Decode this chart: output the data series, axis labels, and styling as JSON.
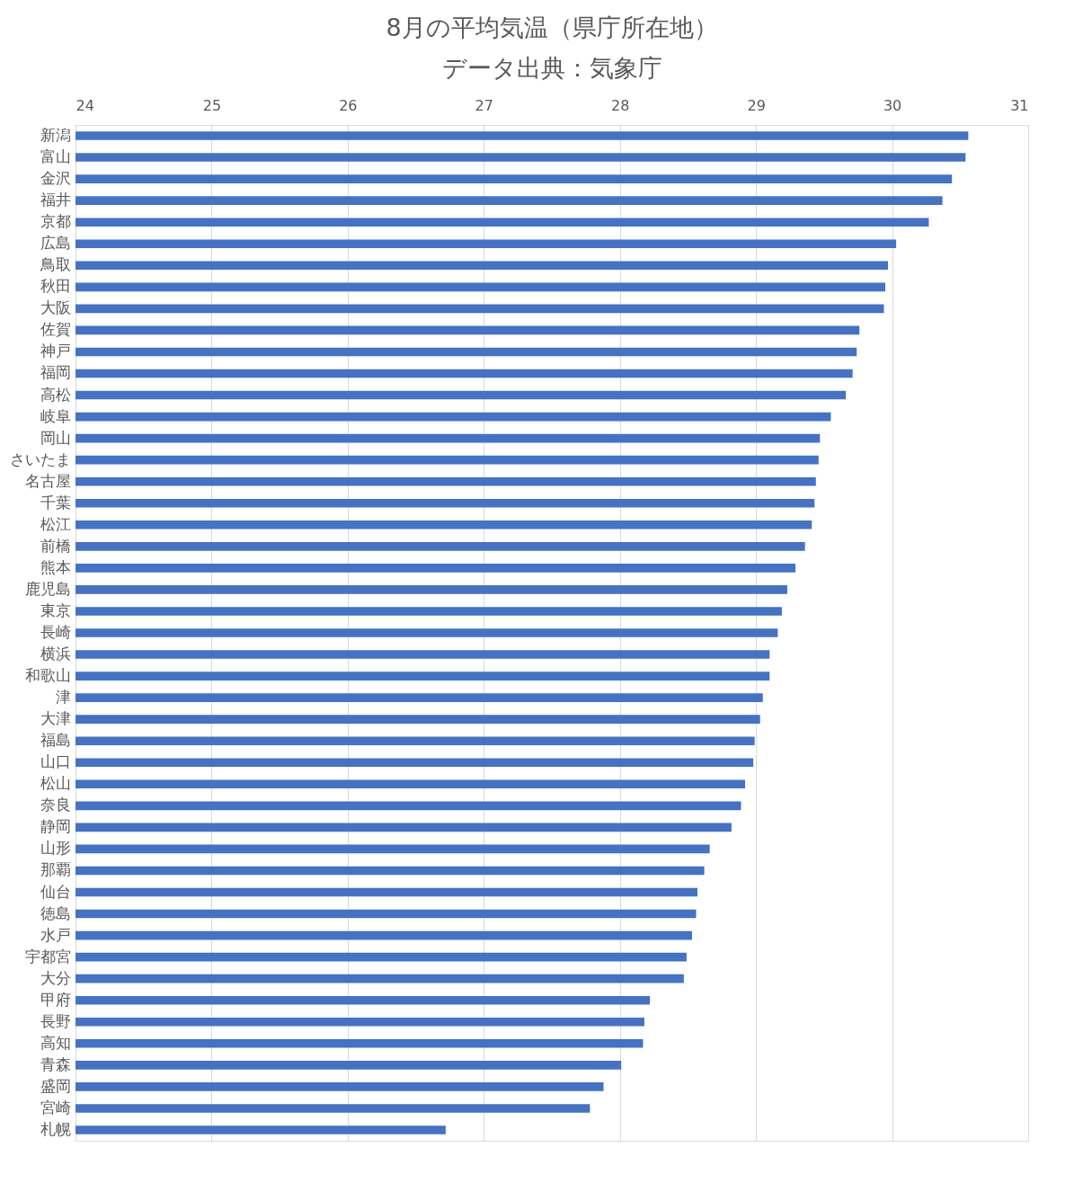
{
  "chart_data": {
    "type": "bar",
    "orientation": "horizontal",
    "title": "8月の平均気温（県庁所在地）",
    "subtitle": "データ出典：気象庁",
    "categories": [
      "新潟",
      "富山",
      "金沢",
      "福井",
      "京都",
      "広島",
      "鳥取",
      "秋田",
      "大阪",
      "佐賀",
      "神戸",
      "福岡",
      "高松",
      "岐阜",
      "岡山",
      "さいたま",
      "名古屋",
      "千葉",
      "松江",
      "前橋",
      "熊本",
      "鹿児島",
      "東京",
      "長崎",
      "横浜",
      "和歌山",
      "津",
      "大津",
      "福島",
      "山口",
      "松山",
      "奈良",
      "静岡",
      "山形",
      "那覇",
      "仙台",
      "徳島",
      "水戸",
      "宇都宮",
      "大分",
      "甲府",
      "長野",
      "高知",
      "青森",
      "盛岡",
      "宮崎",
      "札幌"
    ],
    "values": [
      30.56,
      30.54,
      30.44,
      30.37,
      30.27,
      30.03,
      29.97,
      29.95,
      29.94,
      29.76,
      29.74,
      29.71,
      29.66,
      29.55,
      29.47,
      29.46,
      29.44,
      29.43,
      29.41,
      29.36,
      29.29,
      29.23,
      29.19,
      29.16,
      29.1,
      29.1,
      29.05,
      29.03,
      28.99,
      28.98,
      28.92,
      28.89,
      28.82,
      28.66,
      28.62,
      28.57,
      28.56,
      28.53,
      28.49,
      28.47,
      28.22,
      28.18,
      28.17,
      28.01,
      27.88,
      27.78,
      26.72
    ],
    "color": "#4472c4",
    "xlim": [
      24,
      31
    ],
    "xticks": [
      24,
      25,
      26,
      27,
      28,
      29,
      30,
      31
    ],
    "grid": "x"
  }
}
